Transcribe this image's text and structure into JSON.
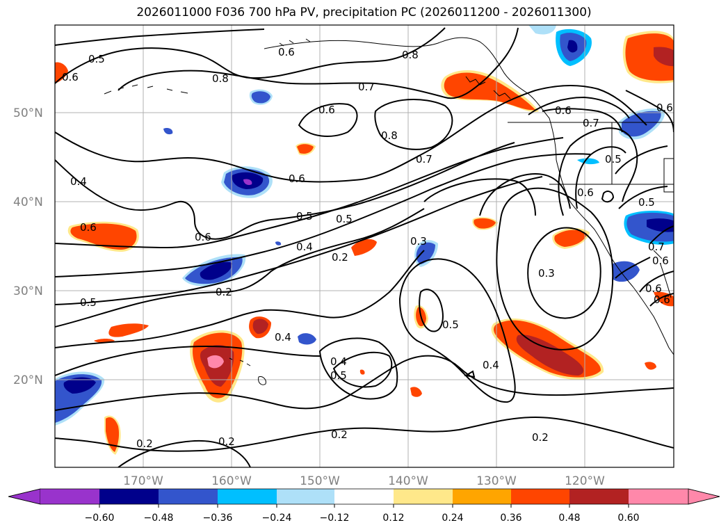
{
  "title": "2026011000 F036 700 hPa PV, precipitation PC (2026011200 - 2026011300)",
  "lat_labels": [
    "50°N",
    "40°N",
    "30°N",
    "20°N"
  ],
  "lon_labels": [
    "170°W",
    "160°W",
    "150°W",
    "140°W",
    "130°W",
    "120°W"
  ],
  "colorbar": {
    "ticks": [
      "−0.60",
      "−0.48",
      "−0.36",
      "−0.24",
      "−0.12",
      "0.12",
      "0.24",
      "0.36",
      "0.48",
      "0.60"
    ],
    "colors": [
      "#9933cc",
      "#00008b",
      "#3355cc",
      "#00bfff",
      "#aee0f8",
      "#ffffff",
      "#ffe88a",
      "#ffa500",
      "#ff4500",
      "#b22222",
      "#ff88aa"
    ]
  },
  "contour_labels": [
    "0.5",
    "0.6",
    "0.6",
    "0.8",
    "0.7",
    "0.6",
    "0.8",
    "0.7",
    "0.8",
    "0.6",
    "0.7",
    "0.4",
    "0.6",
    "0.5",
    "0.5",
    "0.6",
    "0.4",
    "0.2",
    "0.3",
    "0.5",
    "0.5",
    "0.2",
    "0.4",
    "0.4",
    "0.5",
    "0.4",
    "0.3",
    "0.6",
    "0.5",
    "0.6",
    "0.2",
    "0.2",
    "0.2",
    "0.2",
    "0.6",
    "0.5",
    "0.7",
    "0.6",
    "0.6",
    "0.6"
  ]
}
